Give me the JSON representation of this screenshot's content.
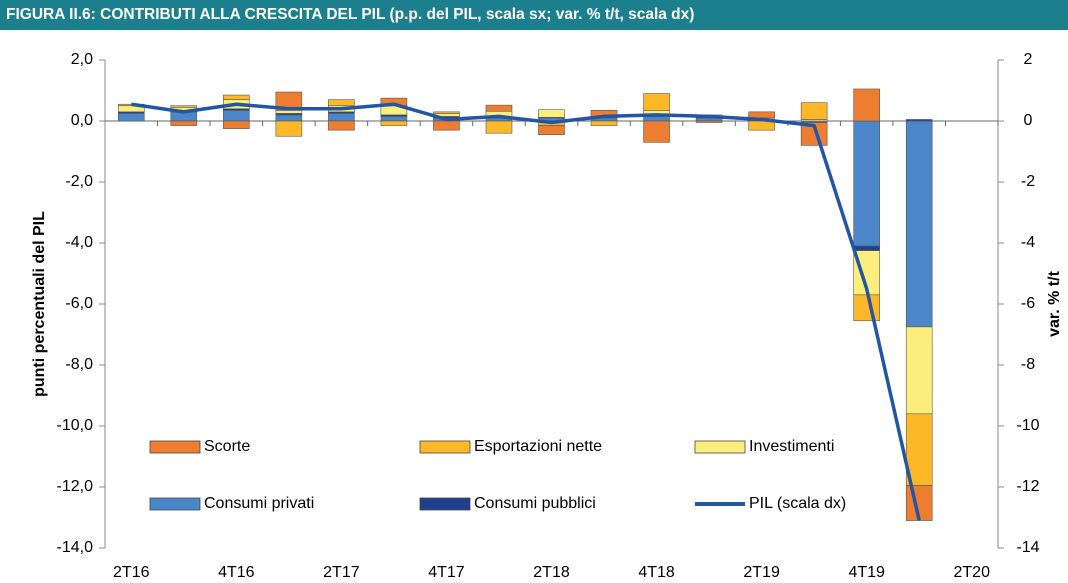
{
  "chart_data": {
    "type": "bar",
    "title": "FIGURA II.6: CONTRIBUTI ALLA CRESCITA DEL PIL (p.p. del PIL, scala sx; var. % t/t, scala dx)",
    "y_label": "punti percentuali del PIL",
    "y2_label": "var. % t/t",
    "stacked": true,
    "categories": [
      "2T16",
      null,
      "4T16",
      null,
      "2T17",
      null,
      "4T17",
      null,
      "2T18",
      null,
      "4T18",
      null,
      "2T19",
      null,
      "4T19",
      null,
      "2T20"
    ],
    "series": [
      {
        "name": "Consumi privati",
        "color": "#4a86c8",
        "values": [
          0.25,
          0.3,
          0.35,
          0.2,
          0.25,
          0.15,
          0.1,
          0.1,
          0.1,
          0.1,
          0.15,
          0.1,
          0.05,
          -0.05,
          -4.1,
          -6.75,
          null
        ]
      },
      {
        "name": "Consumi pubblici",
        "color": "#1f3f8f",
        "values": [
          0.05,
          0,
          0.05,
          0.05,
          0.05,
          0.05,
          0.05,
          0.02,
          0.02,
          0,
          0,
          0.05,
          0,
          0,
          -0.15,
          0.05,
          null
        ]
      },
      {
        "name": "Investimenti",
        "color": "#fbee7c",
        "values": [
          0.2,
          0.15,
          0.3,
          0.1,
          0.2,
          0.3,
          0.1,
          0.2,
          0.25,
          0.05,
          0.2,
          0.05,
          0.05,
          0.05,
          -1.45,
          -2.85,
          null
        ]
      },
      {
        "name": "Esportazioni nette",
        "color": "#fdb827",
        "values": [
          0.05,
          0.05,
          0.15,
          -0.5,
          0.2,
          -0.15,
          0.05,
          -0.4,
          -0.15,
          -0.15,
          0.55,
          0,
          -0.3,
          0.55,
          -0.85,
          -2.35,
          null
        ]
      },
      {
        "name": "Scorte",
        "color": "#ed7d31",
        "values": [
          0,
          -0.15,
          -0.25,
          0.6,
          -0.3,
          0.25,
          -0.3,
          0.2,
          -0.3,
          0.2,
          -0.7,
          -0.05,
          0.2,
          -0.75,
          1.05,
          -1.15,
          null
        ]
      },
      {
        "name": "PIL (scala dx)",
        "color": "#2255a4",
        "type": "line",
        "axis": "y2",
        "values": [
          0.55,
          0.3,
          0.55,
          0.4,
          0.4,
          0.55,
          0.05,
          0.15,
          -0.05,
          0.15,
          0.2,
          0.15,
          0.05,
          -0.15,
          -5.5,
          -13.1,
          null
        ]
      }
    ],
    "legend_order": [
      4,
      3,
      2,
      0,
      1,
      5
    ],
    "ylim": [
      -14,
      2
    ],
    "yticks": [
      {
        "value": 2,
        "label": "2,0"
      },
      {
        "value": 0,
        "label": "0,0"
      },
      {
        "value": -2,
        "label": "-2,0"
      },
      {
        "value": -4,
        "label": "-4,0"
      },
      {
        "value": -6,
        "label": "-6,0"
      },
      {
        "value": -8,
        "label": "-8,0"
      },
      {
        "value": -10,
        "label": "-10,0"
      },
      {
        "value": -12,
        "label": "-12,0"
      },
      {
        "value": -14,
        "label": "-14,0"
      }
    ],
    "y2lim": [
      -14,
      2
    ],
    "y2ticks": [
      2,
      0,
      -2,
      -4,
      -6,
      -8,
      -10,
      -12,
      -14
    ],
    "header_color": "#1b7f8e"
  }
}
